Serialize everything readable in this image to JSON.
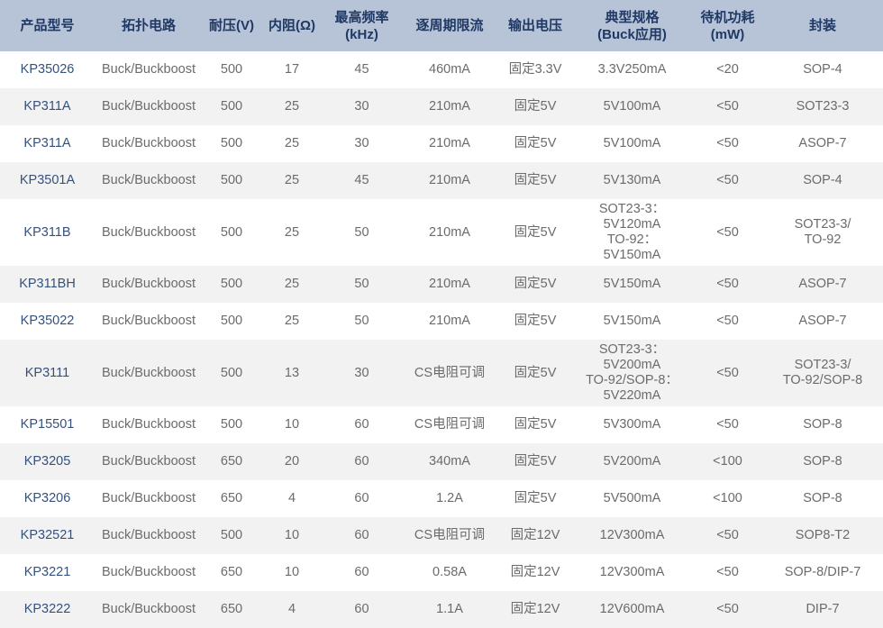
{
  "colors": {
    "header_bg": "#b7c4d8",
    "header_text": "#203864",
    "alt_row_bg": "#f2f2f2",
    "row_bg": "#ffffff",
    "body_text": "#6b6b6b",
    "model_text": "#34517c"
  },
  "table": {
    "columns": [
      {
        "key": "model",
        "label": "产品型号"
      },
      {
        "key": "topology",
        "label": "拓扑电路"
      },
      {
        "key": "voltage",
        "label": "耐压(V)"
      },
      {
        "key": "resistance",
        "label": "内阻(Ω)"
      },
      {
        "key": "max_freq",
        "label": "最高频率\n(kHz)"
      },
      {
        "key": "current_limit",
        "label": "逐周期限流"
      },
      {
        "key": "output_voltage",
        "label": "输出电压"
      },
      {
        "key": "typical_spec",
        "label": "典型规格\n(Buck应用)"
      },
      {
        "key": "standby_power",
        "label": "待机功耗\n(mW)"
      },
      {
        "key": "package",
        "label": "封装"
      }
    ],
    "rows": [
      {
        "model": "KP35026",
        "topology": "Buck/Buckboost",
        "voltage": "500",
        "resistance": "17",
        "max_freq": "45",
        "current_limit": "460mA",
        "output_voltage": "固定3.3V",
        "typical_spec": "3.3V250mA",
        "standby_power": "<20",
        "package": "SOP-4"
      },
      {
        "model": "KP311A",
        "topology": "Buck/Buckboost",
        "voltage": "500",
        "resistance": "25",
        "max_freq": "30",
        "current_limit": "210mA",
        "output_voltage": "固定5V",
        "typical_spec": "5V100mA",
        "standby_power": "<50",
        "package": "SOT23-3"
      },
      {
        "model": "KP311A",
        "topology": "Buck/Buckboost",
        "voltage": "500",
        "resistance": "25",
        "max_freq": "30",
        "current_limit": "210mA",
        "output_voltage": "固定5V",
        "typical_spec": "5V100mA",
        "standby_power": "<50",
        "package": "ASOP-7"
      },
      {
        "model": "KP3501A",
        "topology": "Buck/Buckboost",
        "voltage": "500",
        "resistance": "25",
        "max_freq": "45",
        "current_limit": "210mA",
        "output_voltage": "固定5V",
        "typical_spec": "5V130mA",
        "standby_power": "<50",
        "package": "SOP-4"
      },
      {
        "model": "KP311B",
        "topology": "Buck/Buckboost",
        "voltage": "500",
        "resistance": "25",
        "max_freq": "50",
        "current_limit": "210mA",
        "output_voltage": "固定5V",
        "typical_spec": "SOT23-3：\n5V120mA\nTO-92：\n5V150mA",
        "standby_power": "<50",
        "package": "SOT23-3/\nTO-92"
      },
      {
        "model": "KP311BH",
        "topology": "Buck/Buckboost",
        "voltage": "500",
        "resistance": "25",
        "max_freq": "50",
        "current_limit": "210mA",
        "output_voltage": "固定5V",
        "typical_spec": "5V150mA",
        "standby_power": "<50",
        "package": "ASOP-7"
      },
      {
        "model": "KP35022",
        "topology": "Buck/Buckboost",
        "voltage": "500",
        "resistance": "25",
        "max_freq": "50",
        "current_limit": "210mA",
        "output_voltage": "固定5V",
        "typical_spec": "5V150mA",
        "standby_power": "<50",
        "package": "ASOP-7"
      },
      {
        "model": "KP3111",
        "topology": "Buck/Buckboost",
        "voltage": "500",
        "resistance": "13",
        "max_freq": "30",
        "current_limit": "CS电阻可调",
        "output_voltage": "固定5V",
        "typical_spec": "SOT23-3：\n5V200mA\nTO-92/SOP-8：\n5V220mA",
        "standby_power": "<50",
        "package": "SOT23-3/\nTO-92/SOP-8"
      },
      {
        "model": "KP15501",
        "topology": "Buck/Buckboost",
        "voltage": "500",
        "resistance": "10",
        "max_freq": "60",
        "current_limit": "CS电阻可调",
        "output_voltage": "固定5V",
        "typical_spec": "5V300mA",
        "standby_power": "<50",
        "package": "SOP-8"
      },
      {
        "model": "KP3205",
        "topology": "Buck/Buckboost",
        "voltage": "650",
        "resistance": "20",
        "max_freq": "60",
        "current_limit": "340mA",
        "output_voltage": "固定5V",
        "typical_spec": "5V200mA",
        "standby_power": "<100",
        "package": "SOP-8"
      },
      {
        "model": "KP3206",
        "topology": "Buck/Buckboost",
        "voltage": "650",
        "resistance": "4",
        "max_freq": "60",
        "current_limit": "1.2A",
        "output_voltage": "固定5V",
        "typical_spec": "5V500mA",
        "standby_power": "<100",
        "package": "SOP-8"
      },
      {
        "model": "KP32521",
        "topology": "Buck/Buckboost",
        "voltage": "500",
        "resistance": "10",
        "max_freq": "60",
        "current_limit": "CS电阻可调",
        "output_voltage": "固定12V",
        "typical_spec": "12V300mA",
        "standby_power": "<50",
        "package": "SOP8-T2"
      },
      {
        "model": "KP3221",
        "topology": "Buck/Buckboost",
        "voltage": "650",
        "resistance": "10",
        "max_freq": "60",
        "current_limit": "0.58A",
        "output_voltage": "固定12V",
        "typical_spec": "12V300mA",
        "standby_power": "<50",
        "package": "SOP-8/DIP-7"
      },
      {
        "model": "KP3222",
        "topology": "Buck/Buckboost",
        "voltage": "650",
        "resistance": "4",
        "max_freq": "60",
        "current_limit": "1.1A",
        "output_voltage": "固定12V",
        "typical_spec": "12V600mA",
        "standby_power": "<50",
        "package": "DIP-7"
      }
    ]
  }
}
